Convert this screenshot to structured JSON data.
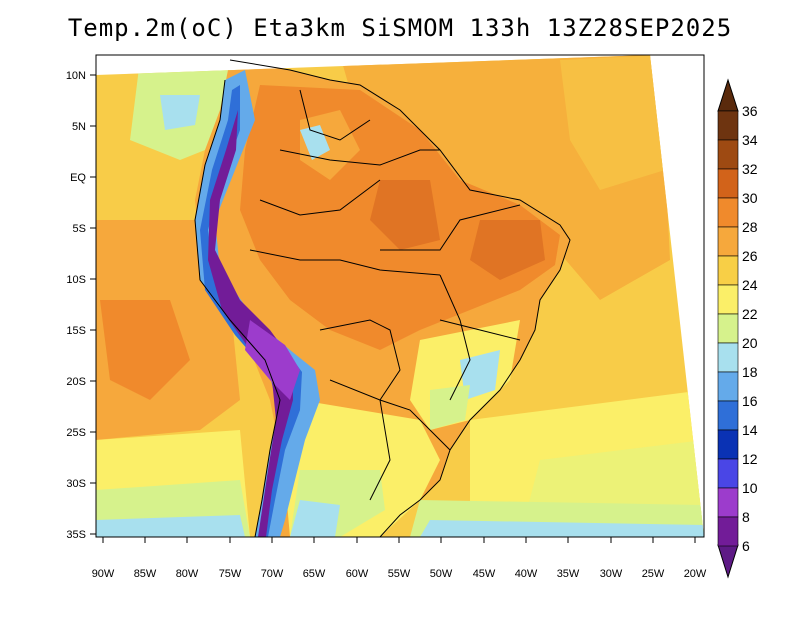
{
  "title": "Temp.2m(oC) Eta3km SiSMOM 133h 13Z28SEP2025",
  "map": {
    "variable": "2 m temperature",
    "units": "oC",
    "lat_labels": [
      "10N",
      "5N",
      "EQ",
      "5S",
      "10S",
      "15S",
      "20S",
      "25S",
      "30S",
      "35S"
    ],
    "lon_labels": [
      "90W",
      "85W",
      "80W",
      "75W",
      "70W",
      "65W",
      "60W",
      "55W",
      "50W",
      "45W",
      "40W",
      "35W",
      "30W",
      "25W",
      "20W"
    ]
  },
  "colorbar": {
    "labels": [
      "36",
      "34",
      "32",
      "30",
      "28",
      "26",
      "24",
      "22",
      "20",
      "18",
      "16",
      "14",
      "12",
      "10",
      "8",
      "6"
    ],
    "colors": [
      "#6e3410",
      "#9e4a12",
      "#d2631a",
      "#f08a2c",
      "#f6a83c",
      "#f8cf46",
      "#fbef68",
      "#d6f28c",
      "#a8e0ee",
      "#64aaea",
      "#2f6fd8",
      "#0a32b4",
      "#4a46e6",
      "#9c3ccc",
      "#721c98"
    ],
    "top_arrow_color": "#5a2a0c",
    "bottom_arrow_color": "#5e1a86"
  }
}
